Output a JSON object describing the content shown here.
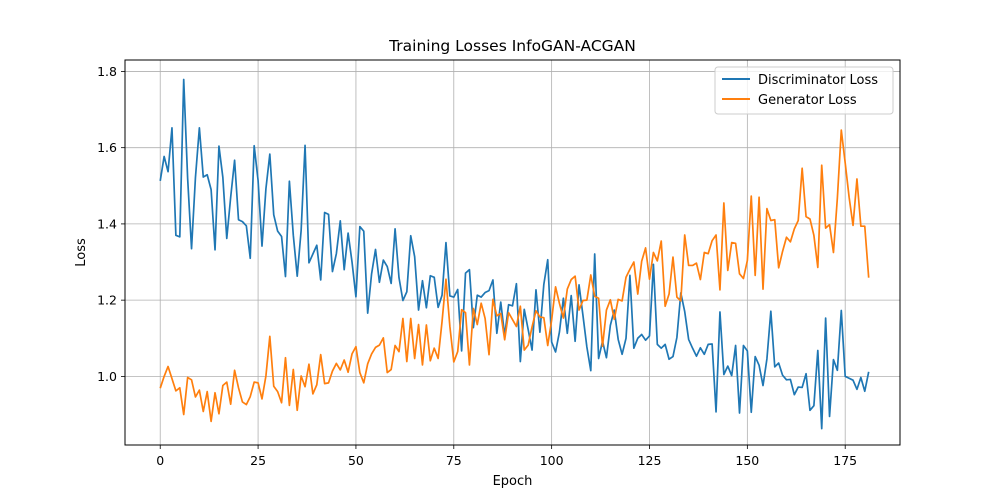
{
  "chart_data": {
    "type": "line",
    "title": "Training Losses InfoGAN-ACGAN",
    "xlabel": "Epoch",
    "ylabel": "Loss",
    "xlim": [
      -9,
      189
    ],
    "ylim": [
      0.82,
      1.83
    ],
    "xticks": [
      0,
      25,
      50,
      75,
      100,
      125,
      150,
      175
    ],
    "yticks": [
      1.0,
      1.2,
      1.4,
      1.6,
      1.8
    ],
    "grid": true,
    "legend_position": "top-right",
    "series": [
      {
        "name": "Discriminator Loss",
        "color": "#1f77b4",
        "values": [
          1.513,
          1.577,
          1.537,
          1.652,
          1.37,
          1.366,
          1.779,
          1.52,
          1.335,
          1.522,
          1.652,
          1.523,
          1.529,
          1.49,
          1.332,
          1.604,
          1.522,
          1.362,
          1.47,
          1.567,
          1.411,
          1.406,
          1.395,
          1.31,
          1.605,
          1.514,
          1.342,
          1.492,
          1.583,
          1.424,
          1.381,
          1.367,
          1.262,
          1.512,
          1.37,
          1.263,
          1.383,
          1.606,
          1.298,
          1.321,
          1.344,
          1.253,
          1.43,
          1.425,
          1.275,
          1.322,
          1.408,
          1.28,
          1.376,
          1.3,
          1.209,
          1.393,
          1.381,
          1.166,
          1.269,
          1.333,
          1.247,
          1.305,
          1.288,
          1.244,
          1.387,
          1.259,
          1.199,
          1.222,
          1.369,
          1.314,
          1.174,
          1.251,
          1.18,
          1.264,
          1.26,
          1.181,
          1.213,
          1.351,
          1.211,
          1.208,
          1.228,
          1.067,
          1.271,
          1.28,
          1.128,
          1.213,
          1.208,
          1.22,
          1.225,
          1.253,
          1.113,
          1.195,
          1.107,
          1.188,
          1.185,
          1.243,
          1.039,
          1.176,
          1.123,
          1.069,
          1.227,
          1.116,
          1.241,
          1.306,
          1.09,
          1.064,
          1.117,
          1.205,
          1.113,
          1.212,
          1.092,
          1.24,
          1.16,
          1.077,
          1.015,
          1.321,
          1.047,
          1.092,
          1.049,
          1.134,
          1.174,
          1.097,
          1.058,
          1.1,
          1.265,
          1.074,
          1.1,
          1.11,
          1.095,
          1.106,
          1.294,
          1.084,
          1.074,
          1.084,
          1.045,
          1.052,
          1.102,
          1.219,
          1.17,
          1.097,
          1.074,
          1.053,
          1.075,
          1.058,
          1.084,
          1.085,
          0.907,
          1.169,
          1.005,
          1.027,
          1.002,
          1.081,
          0.904,
          1.081,
          1.067,
          0.906,
          1.052,
          1.029,
          0.976,
          1.046,
          1.171,
          1.025,
          1.035,
          1.003,
          0.991,
          0.992,
          0.952,
          0.972,
          0.971,
          1.007,
          0.911,
          0.923,
          1.068,
          0.863,
          1.153,
          0.895,
          1.044,
          1.016,
          1.173,
          1.0,
          0.995,
          0.99,
          0.966,
          0.997,
          0.961,
          1.012
        ]
      },
      {
        "name": "Generator Loss",
        "color": "#ff7f0e",
        "values": [
          0.969,
          1.0,
          1.026,
          0.994,
          0.962,
          0.97,
          0.9,
          0.997,
          0.991,
          0.946,
          0.964,
          0.908,
          0.96,
          0.882,
          0.957,
          0.902,
          0.976,
          0.985,
          0.927,
          1.016,
          0.97,
          0.933,
          0.926,
          0.947,
          0.985,
          0.983,
          0.941,
          1.001,
          1.105,
          0.974,
          0.96,
          0.931,
          1.049,
          0.924,
          1.018,
          0.911,
          1.001,
          0.973,
          1.032,
          0.954,
          0.978,
          1.057,
          0.981,
          0.983,
          1.014,
          1.034,
          1.017,
          1.043,
          1.011,
          1.059,
          1.078,
          1.01,
          0.983,
          1.033,
          1.059,
          1.076,
          1.082,
          1.101,
          1.01,
          1.018,
          1.081,
          1.065,
          1.152,
          1.039,
          1.152,
          1.047,
          1.136,
          1.03,
          1.135,
          1.041,
          1.074,
          1.047,
          1.144,
          1.255,
          1.131,
          1.038,
          1.065,
          1.175,
          1.167,
          1.03,
          1.178,
          1.136,
          1.192,
          1.152,
          1.057,
          1.202,
          1.159,
          1.165,
          1.096,
          1.167,
          1.149,
          1.131,
          1.184,
          1.069,
          1.082,
          1.13,
          1.172,
          1.156,
          1.154,
          1.081,
          1.148,
          1.235,
          1.191,
          1.153,
          1.229,
          1.254,
          1.263,
          1.174,
          1.199,
          1.2,
          1.266,
          1.21,
          1.205,
          1.079,
          1.174,
          1.201,
          1.15,
          1.202,
          1.198,
          1.26,
          1.281,
          1.3,
          1.216,
          1.302,
          1.337,
          1.255,
          1.325,
          1.303,
          1.355,
          1.184,
          1.216,
          1.313,
          1.208,
          1.198,
          1.371,
          1.291,
          1.291,
          1.297,
          1.254,
          1.325,
          1.322,
          1.356,
          1.371,
          1.227,
          1.455,
          1.278,
          1.351,
          1.349,
          1.269,
          1.257,
          1.304,
          1.473,
          1.265,
          1.47,
          1.229,
          1.44,
          1.409,
          1.411,
          1.285,
          1.328,
          1.365,
          1.353,
          1.387,
          1.409,
          1.546,
          1.419,
          1.413,
          1.37,
          1.286,
          1.554,
          1.389,
          1.398,
          1.325,
          1.468,
          1.646,
          1.56,
          1.47,
          1.396,
          1.518,
          1.394,
          1.394,
          1.259
        ]
      }
    ]
  }
}
